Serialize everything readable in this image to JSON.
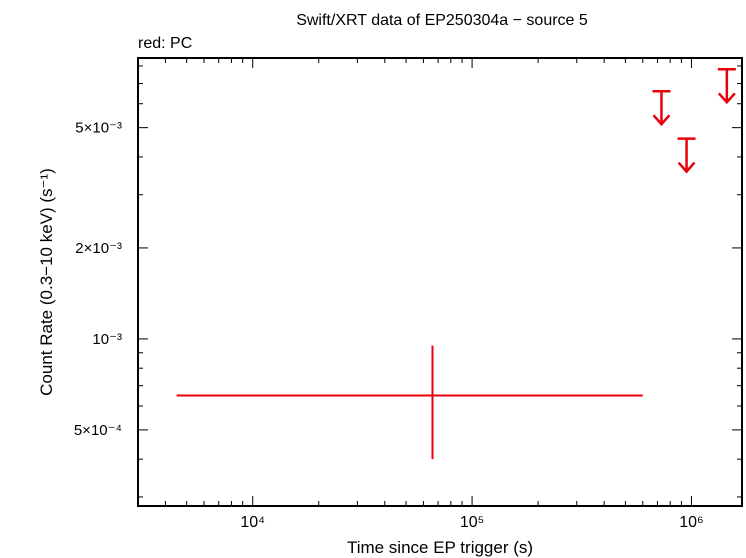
{
  "chart_data": {
    "type": "scatter",
    "title": "Swift/XRT data of EP250304a − source 5",
    "subtitle": "red: PC",
    "xlabel": "Time since EP trigger (s)",
    "ylabel": "Count Rate (0.3−10 keV) (s⁻¹)",
    "x_scale": "log",
    "y_scale": "log",
    "xlim": [
      3000,
      1700000
    ],
    "ylim": [
      0.00028,
      0.0085
    ],
    "grid": false,
    "x_ticks": [
      {
        "value": 10000,
        "label": "10⁴"
      },
      {
        "value": 100000,
        "label": "10⁵"
      },
      {
        "value": 1000000,
        "label": "10⁶"
      }
    ],
    "y_ticks": [
      {
        "value": 0.0005,
        "label": "5×10⁻⁴"
      },
      {
        "value": 0.001,
        "label": "10⁻³"
      },
      {
        "value": 0.002,
        "label": "2×10⁻³"
      },
      {
        "value": 0.005,
        "label": "5×10⁻³"
      }
    ],
    "series": [
      {
        "name": "PC",
        "color": "#e8000b",
        "points": [
          {
            "x": 66000,
            "x_lo": 4500,
            "x_hi": 600000,
            "y": 0.00065,
            "y_lo": 0.0004,
            "y_hi": 0.00095
          }
        ],
        "upper_limits": [
          {
            "x": 730000,
            "y": 0.0066
          },
          {
            "x": 950000,
            "y": 0.0046
          },
          {
            "x": 1450000,
            "y": 0.0078
          }
        ]
      }
    ]
  }
}
